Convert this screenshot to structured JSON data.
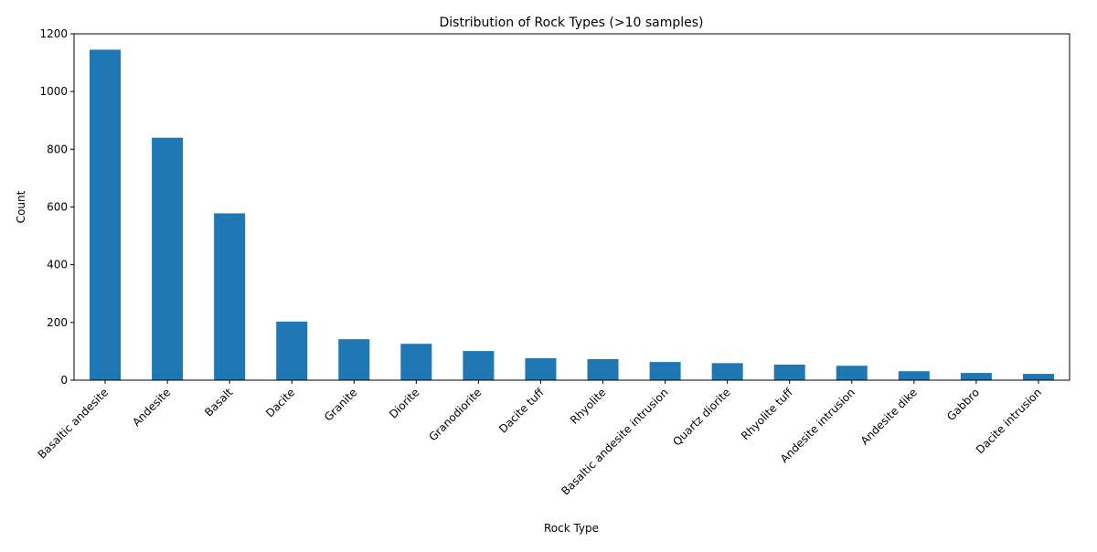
{
  "chart_data": {
    "type": "bar",
    "title": "Distribution of Rock Types (>10 samples)",
    "xlabel": "Rock Type",
    "ylabel": "Count",
    "ylim": [
      0,
      1200
    ],
    "yticks": [
      0,
      200,
      400,
      600,
      800,
      1000,
      1200
    ],
    "grid": false,
    "legend": "none",
    "bar_color": "#1f77b4",
    "categories": [
      "Basaltic andesite",
      "Andesite",
      "Basalt",
      "Dacite",
      "Granite",
      "Diorite",
      "Granodiorite",
      "Dacite tuff",
      "Rhyolite",
      "Basaltic andesite intrusion",
      "Quartz diorite",
      "Rhyolite tuff",
      "Andesite intrusion",
      "Andesite dike",
      "Gabbro",
      "Dacite intrusion"
    ],
    "values": [
      1145,
      840,
      578,
      203,
      142,
      126,
      101,
      76,
      73,
      63,
      59,
      54,
      50,
      31,
      25,
      22
    ]
  }
}
